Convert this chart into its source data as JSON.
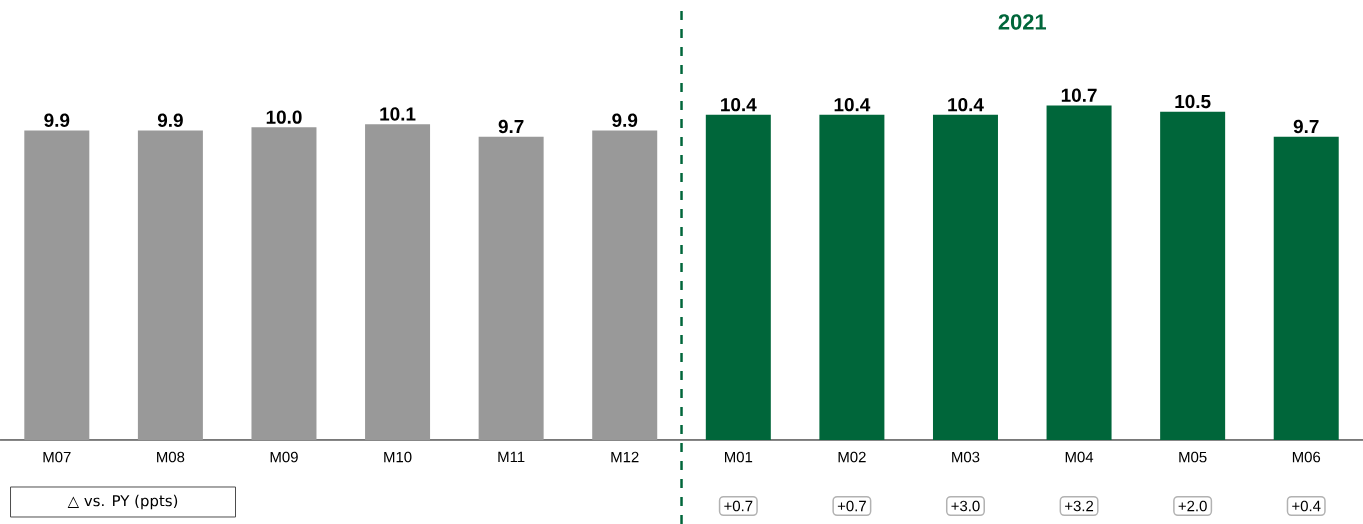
{
  "chart_data": {
    "type": "bar",
    "categories": [
      "M07",
      "M08",
      "M09",
      "M10",
      "M11",
      "M12",
      "M01",
      "M02",
      "M03",
      "M04",
      "M05",
      "M06"
    ],
    "values": [
      9.9,
      9.9,
      10.0,
      10.1,
      9.7,
      9.9,
      10.4,
      10.4,
      10.4,
      10.7,
      10.5,
      9.7
    ],
    "value_labels": [
      "9.9",
      "9.9",
      "10.0",
      "10.1",
      "9.7",
      "9.9",
      "10.4",
      "10.4",
      "10.4",
      "10.7",
      "10.5",
      "9.7"
    ],
    "colors": [
      "#999999",
      "#999999",
      "#999999",
      "#999999",
      "#999999",
      "#999999",
      "#00663a",
      "#00663a",
      "#00663a",
      "#00663a",
      "#00663a",
      "#00663a"
    ],
    "tick_labels": "x",
    "annotations": [
      "2021",
      "△ vs. PY (ppts)",
      "+0.7",
      "+0.7",
      "+3.0",
      "+3.2",
      "+2.0",
      "+0.4"
    ]
  }
}
